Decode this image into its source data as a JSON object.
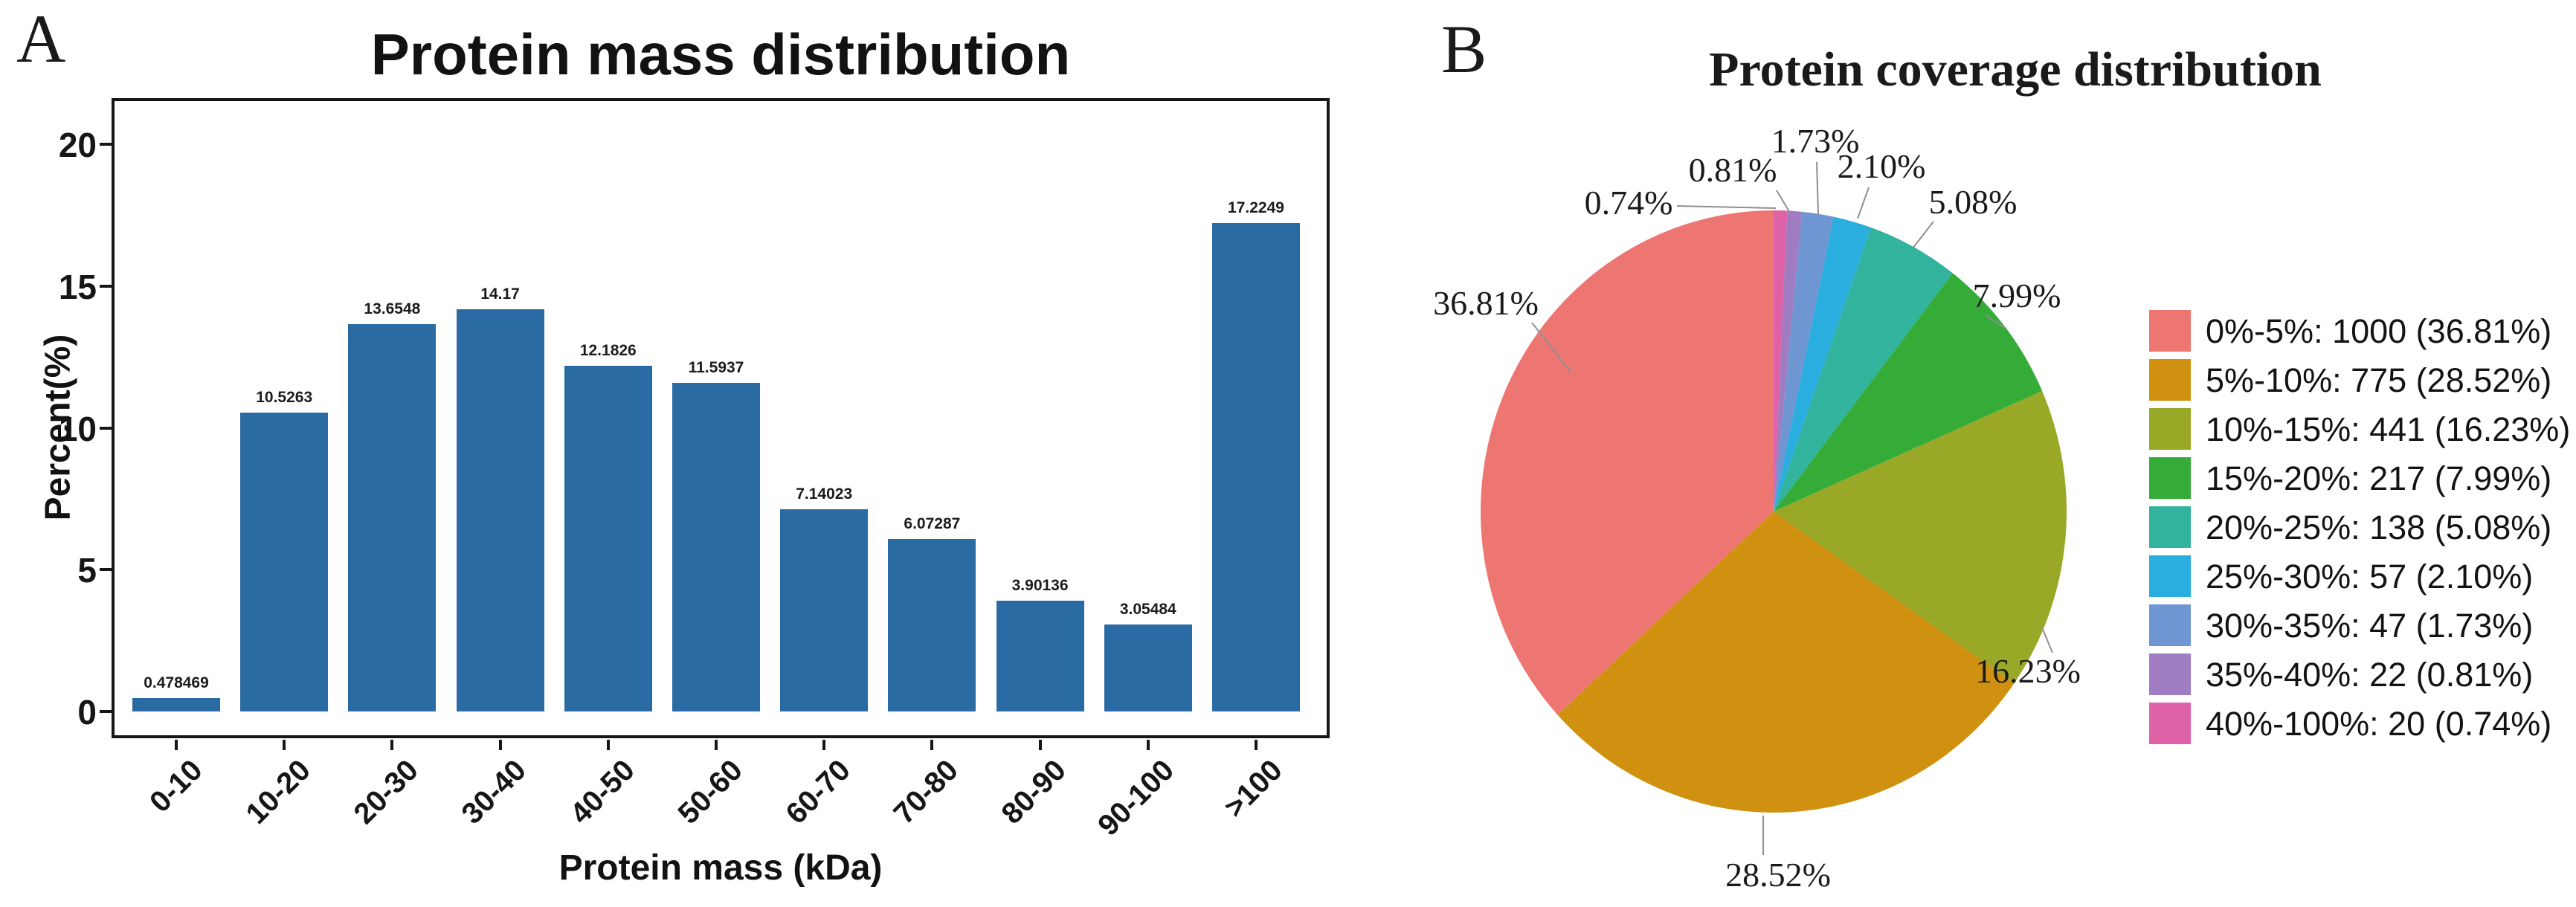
{
  "figure": {
    "panel_a_label": "A",
    "panel_b_label": "B"
  },
  "chart_data": [
    {
      "type": "bar",
      "title": "Protein mass distribution",
      "xlabel": "Protein mass (kDa)",
      "ylabel": "Percent(%)",
      "categories": [
        "0-10",
        "10-20",
        "20-30",
        "30-40",
        "40-50",
        "50-60",
        "60-70",
        "70-80",
        "80-90",
        "90-100",
        ">100"
      ],
      "values": [
        0.478469,
        10.5263,
        13.6548,
        14.17,
        12.1826,
        11.5937,
        7.14023,
        6.07287,
        3.90136,
        3.05484,
        17.2249
      ],
      "value_labels": [
        "0.478469",
        "10.5263",
        "13.6548",
        "14.17",
        "12.1826",
        "11.5937",
        "7.14023",
        "6.07287",
        "3.90136",
        "3.05484",
        "17.2249"
      ],
      "yticks": [
        "0",
        "5",
        "10",
        "15",
        "20"
      ],
      "ylim": [
        0,
        21.5
      ],
      "bar_color": "#2B6BA3",
      "grid": false,
      "legend_position": "none"
    },
    {
      "type": "pie",
      "title": "Protein coverage distribution",
      "start_angle_deg": 90,
      "direction": "counterclockwise",
      "legend_position": "right",
      "slices": [
        {
          "range": "0%-5%",
          "count": 1000,
          "pct": 36.81,
          "pct_label": "36.81%",
          "legend_label": "0%-5%: 1000 (36.81%)",
          "color": "#EE7672"
        },
        {
          "range": "5%-10%",
          "count": 775,
          "pct": 28.52,
          "pct_label": "28.52%",
          "legend_label": "5%-10%: 775 (28.52%)",
          "color": "#D09110"
        },
        {
          "range": "10%-15%",
          "count": 441,
          "pct": 16.23,
          "pct_label": "16.23%",
          "legend_label": "10%-15%: 441 (16.23%)",
          "color": "#9AA827"
        },
        {
          "range": "15%-20%",
          "count": 217,
          "pct": 7.99,
          "pct_label": "7.99%",
          "legend_label": "15%-20%: 217 (7.99%)",
          "color": "#35AC38"
        },
        {
          "range": "20%-25%",
          "count": 138,
          "pct": 5.08,
          "pct_label": "5.08%",
          "legend_label": "20%-25%: 138 (5.08%)",
          "color": "#32B39D"
        },
        {
          "range": "25%-30%",
          "count": 57,
          "pct": 2.1,
          "pct_label": "2.10%",
          "legend_label": "25%-30%: 57 (2.10%)",
          "color": "#29AEDF"
        },
        {
          "range": "30%-35%",
          "count": 47,
          "pct": 1.73,
          "pct_label": "1.73%",
          "legend_label": "30%-35%: 47 (1.73%)",
          "color": "#6E96D2"
        },
        {
          "range": "35%-40%",
          "count": 22,
          "pct": 0.81,
          "pct_label": "0.81%",
          "legend_label": "35%-40%: 22 (0.81%)",
          "color": "#A07CC2"
        },
        {
          "range": "40%-100%",
          "count": 20,
          "pct": 0.74,
          "pct_label": "0.74%",
          "legend_label": "40%-100%: 20 (0.74%)",
          "color": "#DF62A6"
        }
      ]
    }
  ]
}
